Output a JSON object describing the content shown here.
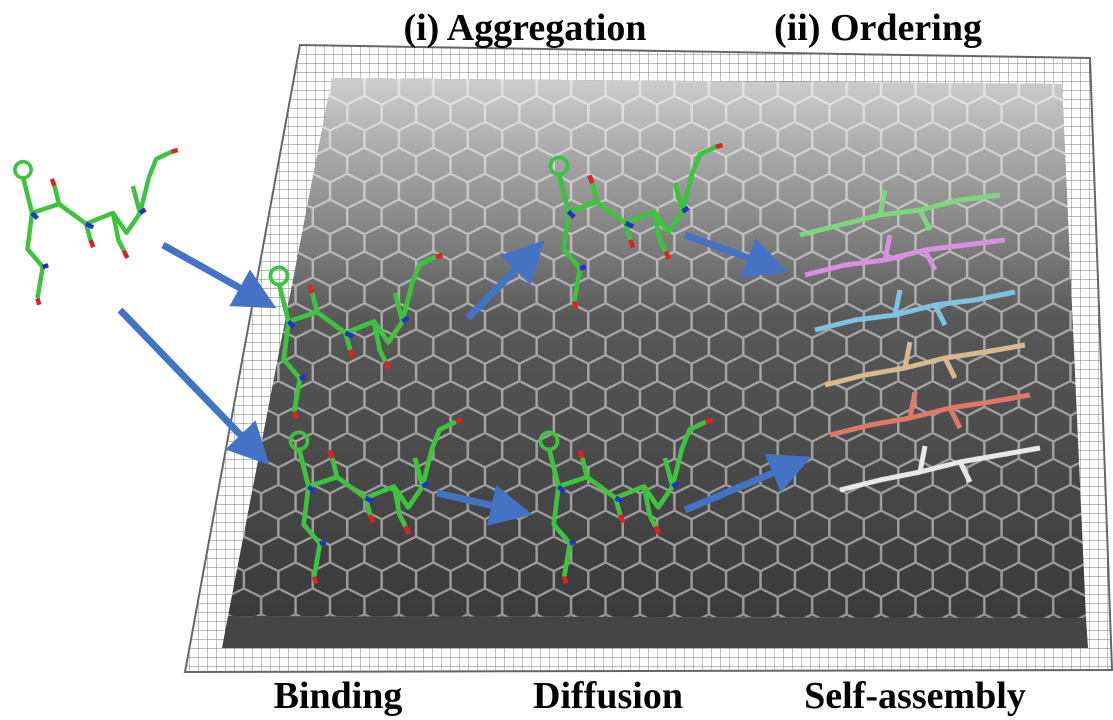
{
  "labels": {
    "top": [
      "(i) Aggregation",
      "(ii) Ordering"
    ],
    "bottom": [
      "Binding",
      "Diffusion",
      "Self-assembly"
    ]
  }
}
